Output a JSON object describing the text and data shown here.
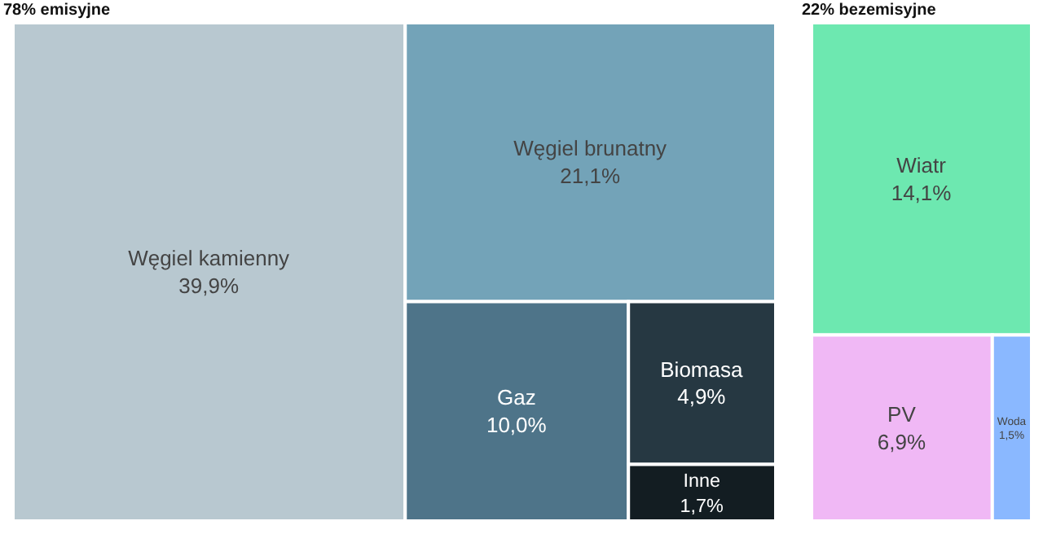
{
  "chart_data": [
    {
      "type": "other",
      "title": "78% emisyjne",
      "categories": [
        "Węgiel kamienny",
        "Węgiel brunatny",
        "Gaz",
        "Biomasa",
        "Inne"
      ],
      "values": [
        39.9,
        21.1,
        10.0,
        4.9,
        1.7
      ],
      "value_labels": [
        "39,9%",
        "21,1%",
        "10,0%",
        "4,9%",
        "1,7%"
      ],
      "colors": [
        "#b8c8d0",
        "#73a3b8",
        "#4e7489",
        "#263842",
        "#131d22"
      ]
    },
    {
      "type": "other",
      "title": "22% bezemisyjne",
      "categories": [
        "Wiatr",
        "PV",
        "Woda"
      ],
      "values": [
        14.1,
        6.9,
        1.5
      ],
      "value_labels": [
        "14,1%",
        "6,9%",
        "1,5%"
      ],
      "colors": [
        "#6de8b0",
        "#f0b8f5",
        "#8ab8ff"
      ]
    }
  ]
}
